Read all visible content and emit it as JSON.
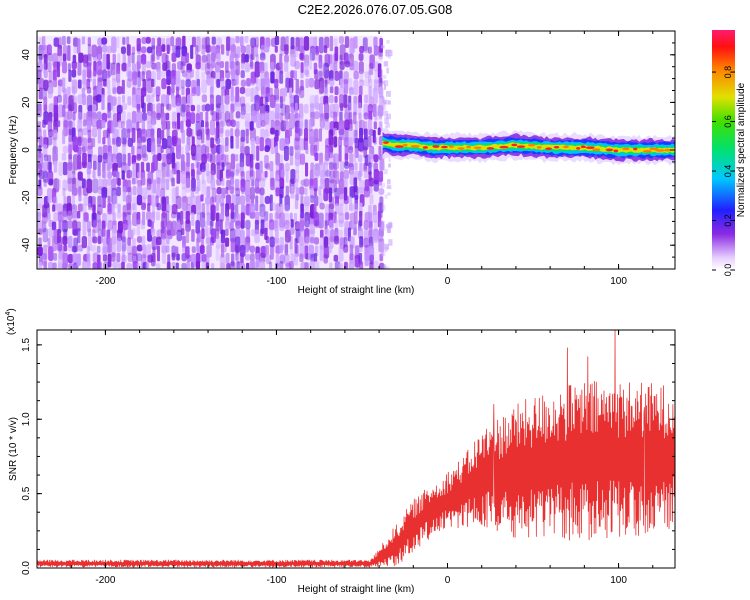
{
  "figure_title": "C2E2.2026.076.07.05.G08",
  "colors": {
    "background": "#ffffff",
    "axis": "#000000",
    "snr_line": "#e83030",
    "noise": "#8a2be2"
  },
  "chart_data": [
    {
      "type": "heatmap",
      "name": "spectrogram",
      "xlabel": "Height of straight line (km)",
      "ylabel": "Frequency (Hz)",
      "xlim": [
        -240,
        133
      ],
      "ylim": [
        -50,
        50
      ],
      "x_ticks": [
        -200,
        -100,
        0,
        100
      ],
      "x_tick_labels": [
        "-200",
        "-100",
        "0",
        "100"
      ],
      "y_ticks": [
        -40,
        -20,
        0,
        20,
        40
      ],
      "y_tick_labels": [
        "-40",
        "-20",
        "0",
        "20",
        "40"
      ],
      "noise_region": {
        "x_from": -240,
        "x_to": -38,
        "freq_from": -50,
        "freq_to": 48
      },
      "signal_band": {
        "x_from": -38,
        "x_to": 133,
        "center_freq_points": [
          {
            "x": -38,
            "f": 3
          },
          {
            "x": -30,
            "f": 2
          },
          {
            "x": -20,
            "f": 2
          },
          {
            "x": -10,
            "f": 1
          },
          {
            "x": 0,
            "f": 1
          },
          {
            "x": 20,
            "f": 1
          },
          {
            "x": 40,
            "f": 2
          },
          {
            "x": 60,
            "f": 1
          },
          {
            "x": 80,
            "f": 1
          },
          {
            "x": 100,
            "f": 0
          },
          {
            "x": 133,
            "f": 0
          }
        ],
        "halfwidth_hz": 3
      },
      "colorbar": {
        "label": "Normalized spectral amplitude",
        "range": [
          0.0,
          0.97
        ],
        "ticks": [
          0.0,
          0.2,
          0.4,
          0.6,
          0.8
        ],
        "tick_labels": [
          "0.0",
          "0.2",
          "0.4",
          "0.6",
          "0.8"
        ]
      }
    },
    {
      "type": "line",
      "name": "snr",
      "xlabel": "Height of straight line (km)",
      "ylabel": "SNR (10 * v/v)",
      "y_scale_label": "(x10",
      "y_scale_exponent": "4",
      "y_scale_suffix": ")",
      "xlim": [
        -240,
        133
      ],
      "ylim": [
        0,
        1.6
      ],
      "x_ticks": [
        -200,
        -100,
        0,
        100
      ],
      "x_tick_labels": [
        "-200",
        "-100",
        "0",
        "100"
      ],
      "y_ticks": [
        0.0,
        0.5,
        1.0,
        1.5
      ],
      "y_tick_labels": [
        "0.0",
        "0.5",
        "1.0",
        "1.5"
      ],
      "series": [
        {
          "name": "SNR",
          "envelope": [
            {
              "x": -240,
              "mean": 0.03,
              "spread": 0.02
            },
            {
              "x": -45,
              "mean": 0.03,
              "spread": 0.02
            },
            {
              "x": -40,
              "mean": 0.07,
              "spread": 0.05
            },
            {
              "x": -30,
              "mean": 0.15,
              "spread": 0.12
            },
            {
              "x": -20,
              "mean": 0.28,
              "spread": 0.15
            },
            {
              "x": -10,
              "mean": 0.38,
              "spread": 0.15
            },
            {
              "x": 0,
              "mean": 0.45,
              "spread": 0.17
            },
            {
              "x": 10,
              "mean": 0.52,
              "spread": 0.2
            },
            {
              "x": 20,
              "mean": 0.6,
              "spread": 0.28
            },
            {
              "x": 40,
              "mean": 0.65,
              "spread": 0.38
            },
            {
              "x": 60,
              "mean": 0.7,
              "spread": 0.42
            },
            {
              "x": 80,
              "mean": 0.72,
              "spread": 0.45
            },
            {
              "x": 100,
              "mean": 0.73,
              "spread": 0.45
            },
            {
              "x": 133,
              "mean": 0.75,
              "spread": 0.4
            }
          ],
          "peaks": [
            {
              "x": 98,
              "y": 1.6
            },
            {
              "x": 70,
              "y": 1.48
            },
            {
              "x": 82,
              "y": 1.42
            },
            {
              "x": 27,
              "y": 1.1
            },
            {
              "x": 115,
              "y": 1.08
            }
          ]
        }
      ]
    }
  ]
}
